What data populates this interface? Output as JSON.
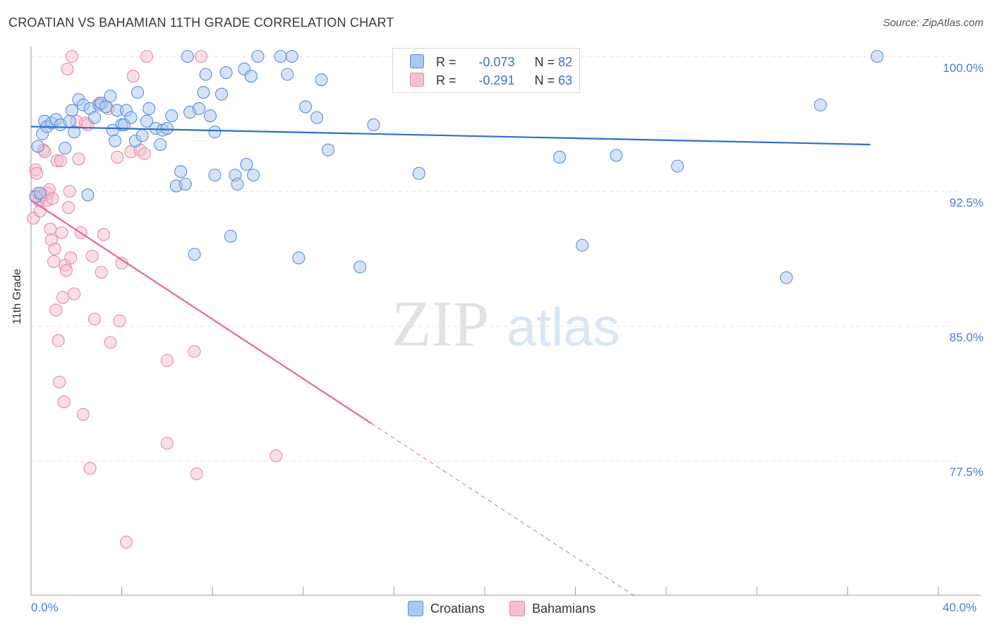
{
  "title": "CROATIAN VS BAHAMIAN 11TH GRADE CORRELATION CHART",
  "source": "Source: ZipAtlas.com",
  "watermark": {
    "zip": "ZIP",
    "atlas": "atlas"
  },
  "legend": {
    "croatians": {
      "r_label": "R =",
      "r_value": "-0.073",
      "n_label": "N =",
      "n_value": "82"
    },
    "bahamians": {
      "r_label": "R =",
      "r_value": "-0.291",
      "n_label": "N =",
      "n_value": "63"
    }
  },
  "bottom_legend": {
    "croatians": "Croatians",
    "bahamians": "Bahamians"
  },
  "colors": {
    "croatians_fill": "#aac8f0",
    "croatians_stroke": "#5b8fd6",
    "croatians_line": "#2f6fcc",
    "bahamians_fill": "#f6bfd0",
    "bahamians_stroke": "#e58aa8",
    "bahamians_line": "#e06a94",
    "tick_label": "#4a7ad0",
    "grid": "#e6e6e6"
  },
  "chart_data": {
    "type": "scatter",
    "title": "CROATIAN VS BAHAMIAN 11TH GRADE CORRELATION CHART",
    "xlabel": "",
    "ylabel": "11th Grade",
    "xlim": [
      0,
      40
    ],
    "ylim": [
      70,
      100.7
    ],
    "x_tick_labels": [
      "0.0%",
      "40.0%"
    ],
    "y_ticks": [
      77.5,
      85.0,
      92.5,
      100.0
    ],
    "y_tick_labels": [
      "77.5%",
      "85.0%",
      "92.5%",
      "100.0%"
    ],
    "grid": true,
    "legend_placement": "top-center",
    "series": [
      {
        "name": "Croatians",
        "R": -0.073,
        "N": 82,
        "trend": {
          "x": [
            0,
            37
          ],
          "y": [
            96.1,
            95.1
          ]
        },
        "points": [
          [
            0.3,
            95.0
          ],
          [
            0.5,
            95.7
          ],
          [
            0.6,
            96.4
          ],
          [
            0.7,
            96.1
          ],
          [
            0.9,
            96.3
          ],
          [
            1.1,
            96.5
          ],
          [
            1.3,
            96.2
          ],
          [
            1.5,
            94.9
          ],
          [
            1.7,
            96.4
          ],
          [
            1.8,
            97.0
          ],
          [
            1.9,
            95.8
          ],
          [
            2.1,
            97.6
          ],
          [
            2.3,
            97.3
          ],
          [
            2.5,
            92.3
          ],
          [
            2.6,
            97.1
          ],
          [
            2.8,
            96.6
          ],
          [
            3.0,
            97.3
          ],
          [
            3.1,
            97.4
          ],
          [
            3.3,
            97.2
          ],
          [
            3.5,
            97.8
          ],
          [
            3.6,
            95.9
          ],
          [
            3.7,
            95.3
          ],
          [
            3.8,
            97.0
          ],
          [
            4.0,
            96.2
          ],
          [
            4.1,
            96.2
          ],
          [
            4.2,
            97.0
          ],
          [
            4.4,
            96.6
          ],
          [
            4.6,
            95.3
          ],
          [
            4.7,
            98.0
          ],
          [
            4.9,
            95.6
          ],
          [
            5.1,
            96.4
          ],
          [
            5.2,
            97.1
          ],
          [
            5.5,
            96.0
          ],
          [
            5.7,
            95.1
          ],
          [
            5.8,
            95.9
          ],
          [
            6.0,
            96.0
          ],
          [
            6.2,
            96.7
          ],
          [
            6.4,
            92.8
          ],
          [
            6.6,
            93.6
          ],
          [
            6.8,
            92.9
          ],
          [
            6.9,
            100.0
          ],
          [
            7.0,
            96.9
          ],
          [
            7.2,
            89.0
          ],
          [
            7.4,
            97.1
          ],
          [
            7.6,
            98.0
          ],
          [
            7.7,
            99.0
          ],
          [
            7.9,
            96.7
          ],
          [
            8.1,
            95.8
          ],
          [
            8.1,
            93.4
          ],
          [
            8.4,
            97.9
          ],
          [
            8.6,
            99.1
          ],
          [
            8.8,
            90.0
          ],
          [
            9.0,
            93.4
          ],
          [
            9.1,
            92.9
          ],
          [
            9.4,
            99.3
          ],
          [
            9.5,
            94.0
          ],
          [
            9.7,
            98.9
          ],
          [
            9.8,
            93.4
          ],
          [
            10.0,
            100.0
          ],
          [
            11.0,
            100.0
          ],
          [
            11.3,
            99.0
          ],
          [
            11.5,
            100.0
          ],
          [
            11.8,
            88.8
          ],
          [
            12.1,
            97.2
          ],
          [
            12.6,
            96.6
          ],
          [
            12.8,
            98.7
          ],
          [
            13.1,
            94.8
          ],
          [
            14.5,
            88.3
          ],
          [
            15.1,
            96.2
          ],
          [
            17.1,
            93.5
          ],
          [
            17.5,
            98.9
          ],
          [
            22.5,
            100.0
          ],
          [
            22.7,
            99.0
          ],
          [
            23.3,
            94.4
          ],
          [
            24.3,
            89.5
          ],
          [
            25.8,
            94.5
          ],
          [
            28.5,
            93.9
          ],
          [
            33.3,
            87.7
          ],
          [
            34.8,
            97.3
          ],
          [
            37.3,
            100.0
          ],
          [
            0.2,
            92.2
          ],
          [
            0.4,
            92.4
          ]
        ]
      },
      {
        "name": "Bahamians",
        "R": -0.291,
        "N": 63,
        "trend": {
          "x": [
            0,
            15
          ],
          "y": [
            92.0,
            79.6
          ]
        },
        "points": [
          [
            0.1,
            91.0
          ],
          [
            0.2,
            93.7
          ],
          [
            0.25,
            93.5
          ],
          [
            0.3,
            92.4
          ],
          [
            0.35,
            92.0
          ],
          [
            0.4,
            91.4
          ],
          [
            0.45,
            92.2
          ],
          [
            0.5,
            92.3
          ],
          [
            0.55,
            94.8
          ],
          [
            0.6,
            94.7
          ],
          [
            0.7,
            92.0
          ],
          [
            0.75,
            92.4
          ],
          [
            0.8,
            92.6
          ],
          [
            0.85,
            90.4
          ],
          [
            0.9,
            89.8
          ],
          [
            0.95,
            92.1
          ],
          [
            1.0,
            88.6
          ],
          [
            1.05,
            89.3
          ],
          [
            1.1,
            85.9
          ],
          [
            1.15,
            94.2
          ],
          [
            1.2,
            84.2
          ],
          [
            1.25,
            81.9
          ],
          [
            1.3,
            94.2
          ],
          [
            1.35,
            90.2
          ],
          [
            1.4,
            86.6
          ],
          [
            1.45,
            80.8
          ],
          [
            1.5,
            88.4
          ],
          [
            1.55,
            88.1
          ],
          [
            1.6,
            99.3
          ],
          [
            1.65,
            91.6
          ],
          [
            1.7,
            92.5
          ],
          [
            1.75,
            88.8
          ],
          [
            1.8,
            100.0
          ],
          [
            1.9,
            86.8
          ],
          [
            2.0,
            96.4
          ],
          [
            2.1,
            94.3
          ],
          [
            2.2,
            90.2
          ],
          [
            2.3,
            80.1
          ],
          [
            2.4,
            96.3
          ],
          [
            2.5,
            96.2
          ],
          [
            2.6,
            77.1
          ],
          [
            2.7,
            88.9
          ],
          [
            2.8,
            85.4
          ],
          [
            3.0,
            97.4
          ],
          [
            3.1,
            88.0
          ],
          [
            3.2,
            90.1
          ],
          [
            3.4,
            97.1
          ],
          [
            3.5,
            84.1
          ],
          [
            3.8,
            94.4
          ],
          [
            3.9,
            85.3
          ],
          [
            4.0,
            88.5
          ],
          [
            4.2,
            73.0
          ],
          [
            4.4,
            94.7
          ],
          [
            4.5,
            98.9
          ],
          [
            4.8,
            94.8
          ],
          [
            5.0,
            94.6
          ],
          [
            5.1,
            100.0
          ],
          [
            6.0,
            83.1
          ],
          [
            6.0,
            78.5
          ],
          [
            7.2,
            83.6
          ],
          [
            7.3,
            76.8
          ],
          [
            7.5,
            100.0
          ],
          [
            10.8,
            77.8
          ]
        ]
      }
    ]
  }
}
